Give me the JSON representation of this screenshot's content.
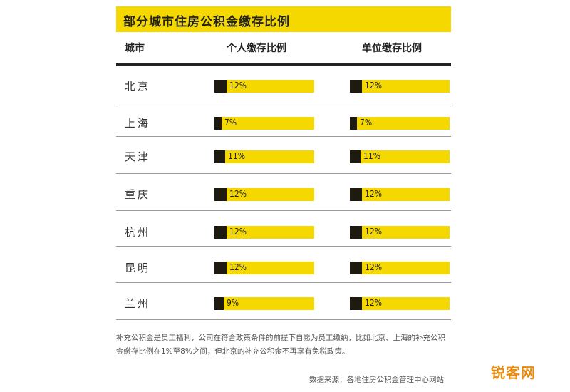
{
  "chart_data": {
    "type": "table",
    "title": "部分城市住房公积金缴存比例",
    "columns": [
      "城市",
      "个人缴存比例",
      "单位缴存比例"
    ],
    "unit": "%",
    "max_value": 100,
    "rows": [
      {
        "city": "北京",
        "personal": 12,
        "personal_label": "12%",
        "employer": 12,
        "employer_label": "12%"
      },
      {
        "city": "上海",
        "personal": 7,
        "personal_label": "7%",
        "employer": 7,
        "employer_label": "7%"
      },
      {
        "city": "天津",
        "personal": 11,
        "personal_label": "11%",
        "employer": 11,
        "employer_label": "11%"
      },
      {
        "city": "重庆",
        "personal": 12,
        "personal_label": "12%",
        "employer": 12,
        "employer_label": "12%"
      },
      {
        "city": "杭州",
        "personal": 12,
        "personal_label": "12%",
        "employer": 12,
        "employer_label": "12%"
      },
      {
        "city": "昆明",
        "personal": 12,
        "personal_label": "12%",
        "employer": 12,
        "employer_label": "12%"
      },
      {
        "city": "兰州",
        "personal": 9,
        "personal_label": "9%",
        "employer": 12,
        "employer_label": "12%"
      }
    ],
    "colors": {
      "bar_background": "#f5d800",
      "bar_fill": "#1e1a10",
      "title_background": "#f5d800"
    }
  },
  "note": "补充公积金是员工福利，公司在符合政策条件的前提下自愿为员工缴纳，比如北京、上海的补充公积金缴存比例在1%至8%之间，但北京的补充公积金不再享有免税政策。",
  "source": "数据来源：各地住房公积金管理中心网站",
  "watermark": "锐客网"
}
